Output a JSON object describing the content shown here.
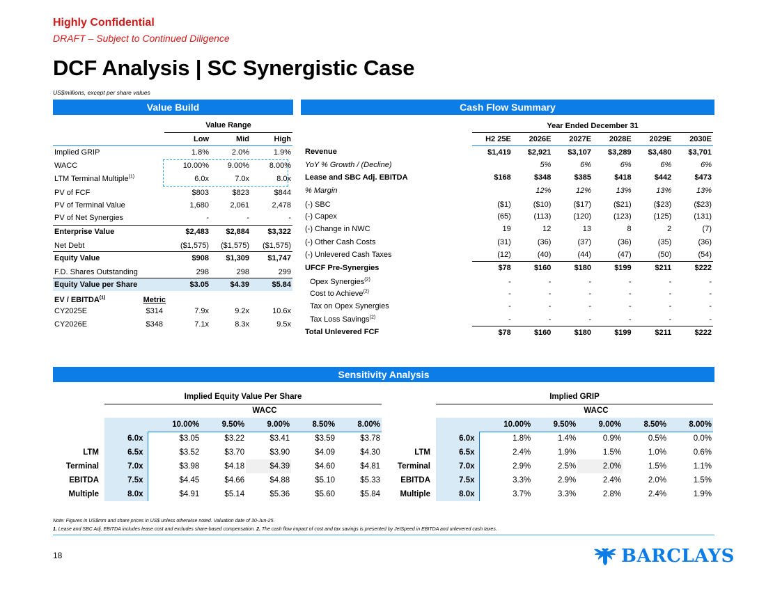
{
  "header": {
    "confidential": "Highly Confidential",
    "draft": "DRAFT – Subject to Continued Diligence",
    "title": "DCF Analysis | SC Synergistic Case",
    "units": "US$millions, except per share values"
  },
  "value_build": {
    "bar": "Value Build",
    "range_label": "Value Range",
    "cols": [
      "Low",
      "Mid",
      "High"
    ],
    "rows": [
      {
        "label": "Implied GRIP",
        "v": [
          "1.8%",
          "2.0%",
          "1.9%"
        ]
      },
      {
        "label": "WACC",
        "v": [
          "10.00%",
          "9.00%",
          "8.00%"
        ]
      },
      {
        "label": "LTM Terminal Multiple",
        "sup": "(1)",
        "v": [
          "6.0x",
          "7.0x",
          "8.0x"
        ]
      },
      {
        "label": "PV of FCF",
        "v": [
          "$803",
          "$823",
          "$844"
        ]
      },
      {
        "label": "PV of Terminal Value",
        "v": [
          "1,680",
          "2,061",
          "2,478"
        ]
      },
      {
        "label": "PV of Net Synergies",
        "v": [
          "-",
          "-",
          "-"
        ]
      },
      {
        "label": "Enterprise Value",
        "v": [
          "$2,483",
          "$2,884",
          "$3,322"
        ]
      },
      {
        "label": "Net Debt",
        "v": [
          "($1,575)",
          "($1,575)",
          "($1,575)"
        ]
      },
      {
        "label": "Equity Value",
        "v": [
          "$908",
          "$1,309",
          "$1,747"
        ]
      },
      {
        "label": "F.D. Shares Outstanding",
        "v": [
          "298",
          "298",
          "299"
        ]
      },
      {
        "label": "Equity Value per Share",
        "v": [
          "$3.05",
          "$4.39",
          "$5.84"
        ]
      }
    ],
    "ev_label": "EV / EBITDA",
    "ev_sup": "(1)",
    "metric_label": "Metric",
    "ev_rows": [
      {
        "label": "CY2025E",
        "metric": "$314",
        "v": [
          "7.9x",
          "9.2x",
          "10.6x"
        ]
      },
      {
        "label": "CY2026E",
        "metric": "$348",
        "v": [
          "7.1x",
          "8.3x",
          "9.5x"
        ]
      }
    ]
  },
  "cash_flow": {
    "bar": "Cash Flow Summary",
    "period_label": "Year Ended December 31",
    "cols": [
      "H2 25E",
      "2026E",
      "2027E",
      "2028E",
      "2029E",
      "2030E"
    ],
    "rows": [
      {
        "label": "Revenue",
        "v": [
          "$1,419",
          "$2,921",
          "$3,107",
          "$3,289",
          "$3,480",
          "$3,701"
        ]
      },
      {
        "label": "YoY % Growth / (Decline)",
        "v": [
          "",
          "5%",
          "6%",
          "6%",
          "6%",
          "6%"
        ]
      },
      {
        "label": "Lease and SBC Adj. EBITDA",
        "v": [
          "$168",
          "$348",
          "$385",
          "$418",
          "$442",
          "$473"
        ]
      },
      {
        "label": "% Margin",
        "v": [
          "",
          "12%",
          "12%",
          "13%",
          "13%",
          "13%"
        ]
      },
      {
        "label": "(-) SBC",
        "v": [
          "($1)",
          "($10)",
          "($17)",
          "($21)",
          "($23)",
          "($23)"
        ]
      },
      {
        "label": "(-) Capex",
        "v": [
          "(65)",
          "(113)",
          "(120)",
          "(123)",
          "(125)",
          "(131)"
        ]
      },
      {
        "label": "(-) Change in NWC",
        "v": [
          "19",
          "12",
          "13",
          "8",
          "2",
          "(7)"
        ]
      },
      {
        "label": "(-) Other Cash Costs",
        "v": [
          "(31)",
          "(36)",
          "(37)",
          "(36)",
          "(35)",
          "(36)"
        ]
      },
      {
        "label": "(-) Unlevered Cash Taxes",
        "v": [
          "(12)",
          "(40)",
          "(44)",
          "(47)",
          "(50)",
          "(54)"
        ]
      },
      {
        "label": "UFCF Pre-Synergies",
        "v": [
          "$78",
          "$160",
          "$180",
          "$199",
          "$211",
          "$222"
        ]
      },
      {
        "label": "Opex Synergies",
        "sup": "(2)",
        "v": [
          "-",
          "-",
          "-",
          "-",
          "-",
          "-"
        ]
      },
      {
        "label": "Cost to Achieve",
        "sup": "(2)",
        "v": [
          "-",
          "-",
          "-",
          "-",
          "-",
          "-"
        ]
      },
      {
        "label": "Tax on Opex Synergies",
        "v": [
          "-",
          "-",
          "-",
          "-",
          "-",
          "-"
        ]
      },
      {
        "label": "Tax Loss Savings",
        "sup": "(2)",
        "v": [
          "-",
          "-",
          "-",
          "-",
          "-",
          "-"
        ]
      },
      {
        "label": "Total Unlevered FCF",
        "v": [
          "$78",
          "$160",
          "$180",
          "$199",
          "$211",
          "$222"
        ]
      }
    ]
  },
  "sensitivity": {
    "bar": "Sensitivity Analysis",
    "wacc_label": "WACC",
    "wacc": [
      "10.00%",
      "9.50%",
      "9.00%",
      "8.50%",
      "8.00%"
    ],
    "multiples": [
      "6.0x",
      "6.5x",
      "7.0x",
      "7.5x",
      "8.0x"
    ],
    "side_labels": [
      "",
      "LTM",
      "Terminal",
      "EBITDA",
      "Multiple"
    ],
    "equity": {
      "title": "Implied Equity Value Per Share",
      "rows": [
        [
          "$3.05",
          "$3.22",
          "$3.41",
          "$3.59",
          "$3.78"
        ],
        [
          "$3.52",
          "$3.70",
          "$3.90",
          "$4.09",
          "$4.30"
        ],
        [
          "$3.98",
          "$4.18",
          "$4.39",
          "$4.60",
          "$4.81"
        ],
        [
          "$4.45",
          "$4.66",
          "$4.88",
          "$5.10",
          "$5.33"
        ],
        [
          "$4.91",
          "$5.14",
          "$5.36",
          "$5.60",
          "$5.84"
        ]
      ]
    },
    "grip": {
      "title": "Implied GRIP",
      "rows": [
        [
          "1.8%",
          "1.4%",
          "0.9%",
          "0.5%",
          "0.0%"
        ],
        [
          "2.4%",
          "1.9%",
          "1.5%",
          "1.0%",
          "0.6%"
        ],
        [
          "2.9%",
          "2.5%",
          "2.0%",
          "1.5%",
          "1.1%"
        ],
        [
          "3.3%",
          "2.9%",
          "2.4%",
          "2.0%",
          "1.5%"
        ],
        [
          "3.7%",
          "3.3%",
          "2.8%",
          "2.4%",
          "1.9%"
        ]
      ]
    }
  },
  "footer": {
    "note1": "Note: Figures in US$mm and share prices in US$ unless otherwise noted. Valuation date of 30-Jun-25.",
    "note2_num1": "1.",
    "note2_text1": " Lease and SBC Adj. EBITDA includes lease cost and excludes share-based compensation. ",
    "note2_num2": "2.",
    "note2_text2": " The cash flow impact of cost and tax savings is presented by JetSpeed in EBITDA and unlevered cash taxes.",
    "page": "18",
    "logo": "BARCLAYS"
  },
  "colors": {
    "accent": "#0c7ce6",
    "confidential": "#d11a1a",
    "highlight": "#d9eaf7"
  }
}
